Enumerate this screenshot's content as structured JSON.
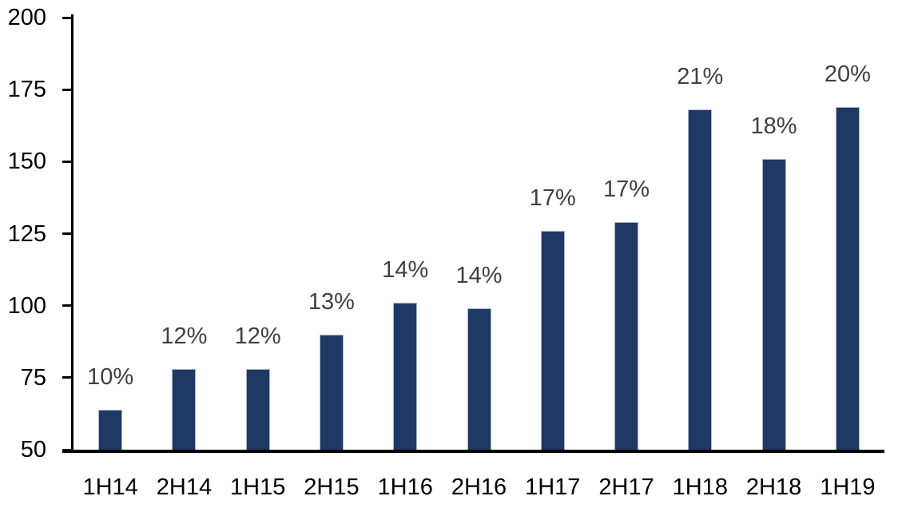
{
  "chart_data": {
    "type": "bar",
    "title": "",
    "xlabel": "",
    "ylabel": "",
    "categories": [
      "1H14",
      "2H14",
      "1H15",
      "2H15",
      "1H16",
      "2H16",
      "1H17",
      "2H17",
      "1H18",
      "2H18",
      "1H19"
    ],
    "values": [
      64,
      78,
      78,
      90,
      101,
      99,
      126,
      129,
      168,
      151,
      169
    ],
    "data_labels": [
      "10%",
      "12%",
      "12%",
      "13%",
      "14%",
      "14%",
      "17%",
      "17%",
      "21%",
      "18%",
      "20%"
    ],
    "ylim": [
      50,
      200
    ],
    "yticks": [
      50,
      75,
      100,
      125,
      150,
      175,
      200
    ],
    "grid": false,
    "legend": false,
    "colors": {
      "bar_fill": "#1F3864",
      "bar_border": "#A9B7CE",
      "data_label": "#404040",
      "axis_text": "#000000",
      "axis_line": "#000000",
      "background": "#FFFFFF"
    }
  }
}
